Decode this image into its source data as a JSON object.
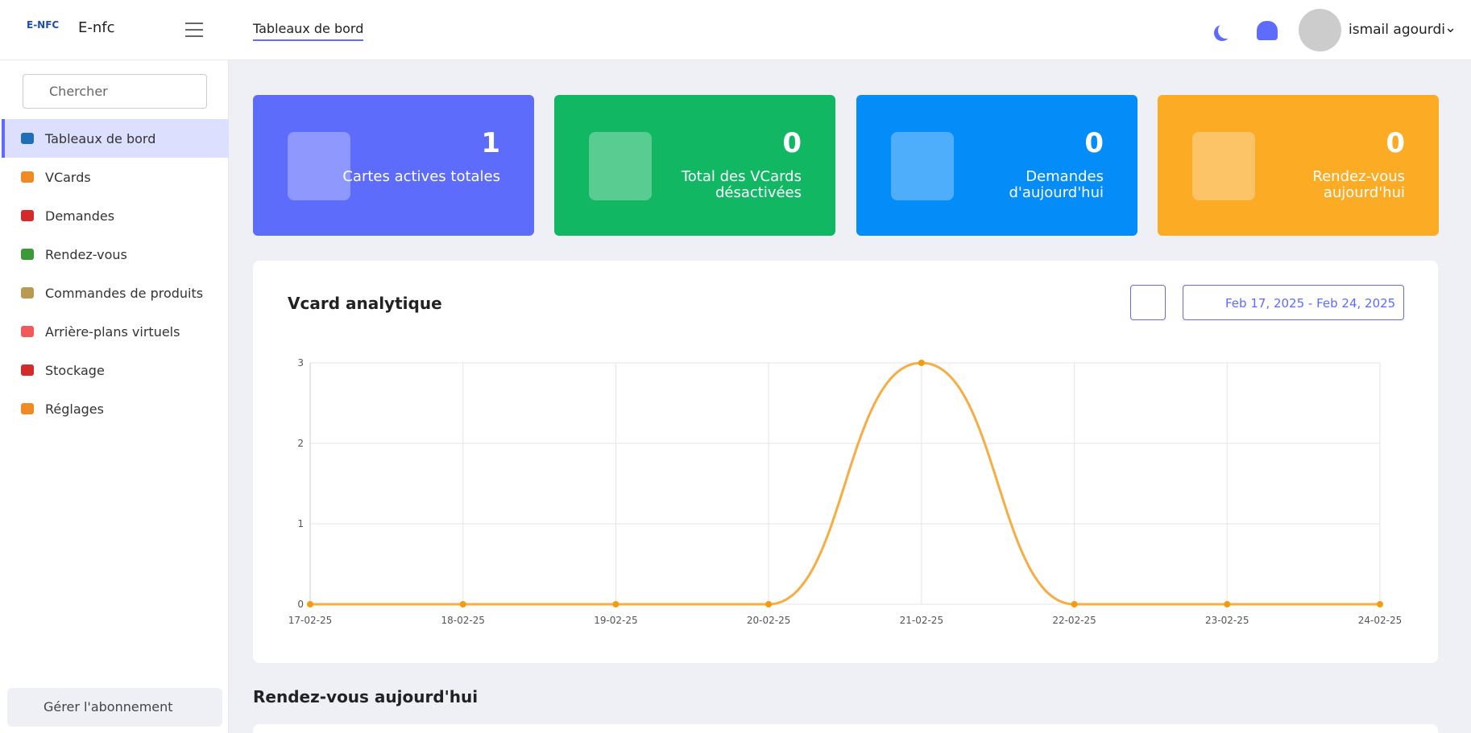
{
  "header": {
    "logo": "E-NFC",
    "brand": "E-nfc",
    "tab": "Tableaux de bord",
    "user": "ismail agourdi"
  },
  "sidebar": {
    "search": "Chercher",
    "items": [
      "Tableaux de bord",
      "VCards",
      "Demandes",
      "Rendez-vous",
      "Commandes de produits",
      "Arrière-plans virtuels",
      "Stockage",
      "Réglages"
    ],
    "footer": "Gérer l'abonnement"
  },
  "stats": [
    {
      "value": 1,
      "label": "Cartes actives totales",
      "color": "#5e6cfc"
    },
    {
      "value": 0,
      "label": "Total des VCards désactivées",
      "color": "#12b764"
    },
    {
      "value": 0,
      "label": "Demandes d'aujourd'hui",
      "color": "#048cf9"
    },
    {
      "value": 0,
      "label": "Rendez-vous aujourd'hui",
      "color": "#fbab24"
    }
  ],
  "chart_data": {
    "type": "line",
    "title": "Vcard analytique",
    "date_range": "Feb 17, 2025 - Feb 24, 2025",
    "categories": [
      "17-02-25",
      "18-02-25",
      "19-02-25",
      "20-02-25",
      "21-02-25",
      "22-02-25",
      "23-02-25",
      "24-02-25"
    ],
    "values": [
      0,
      0,
      0,
      0,
      3,
      0,
      0,
      0
    ],
    "color": "#f6ad45",
    "ylim": [
      0,
      3
    ],
    "yticks": [
      0,
      1,
      2,
      3
    ],
    "grid": true
  },
  "section_title": "Rendez-vous aujourd'hui"
}
